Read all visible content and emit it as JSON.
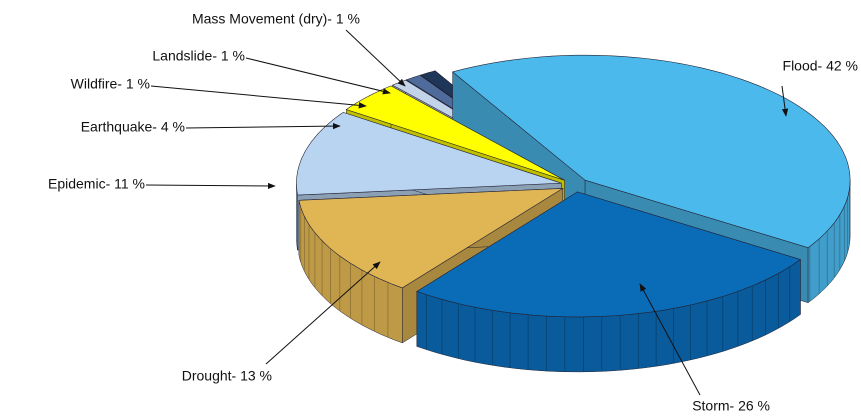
{
  "chart_data": {
    "type": "pie",
    "three_d": true,
    "exploded": true,
    "categories": [
      "Flood",
      "Storm",
      "Drought",
      "Epidemic",
      "Earthquake",
      "Wildfire",
      "Landslide",
      "Mass Movement (dry)"
    ],
    "values": [
      42,
      26,
      13,
      11,
      4,
      1,
      1,
      1
    ],
    "value_labels": [
      "Flood- 42 %",
      "Storm- 26 %",
      "Drought- 13 %",
      "Epidemic- 11 %",
      "Earthquake- 4 %",
      "Wildfire- 1 %",
      "Landslide- 1 %",
      "Mass Movement (dry)- 1 %"
    ],
    "colors": [
      "#4cb9ec",
      "#0a6bb6",
      "#e0b554",
      "#b9d4f1",
      "#ffff00",
      "#c3d3ea",
      "#4e6b9c",
      "#1e3658"
    ]
  }
}
